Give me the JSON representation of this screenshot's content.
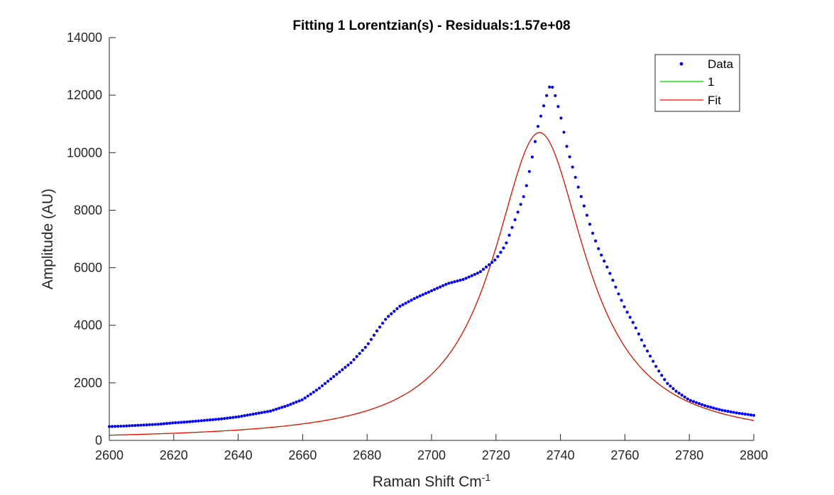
{
  "chart_data": {
    "type": "scatter",
    "title": "Fitting 1 Lorentzian(s) - Residuals:1.57e+08",
    "xlabel": "Raman Shift Cm",
    "xlabel_superscript": "-1",
    "ylabel": "Amplitude (AU)",
    "xlim": [
      2600,
      2800
    ],
    "ylim": [
      0,
      14000
    ],
    "xticks": [
      "2600",
      "2620",
      "2640",
      "2660",
      "2680",
      "2700",
      "2720",
      "2740",
      "2760",
      "2780",
      "2800"
    ],
    "yticks": [
      "0",
      "2000",
      "4000",
      "6000",
      "8000",
      "10000",
      "12000",
      "14000"
    ],
    "grid": false,
    "legend_position": "top-right",
    "legend": [
      "Data",
      "1",
      "Fit"
    ],
    "colors": {
      "data": "#0000ff",
      "component_1": "#00cc00",
      "fit": "#ff0000",
      "axes": "#262626"
    },
    "series": [
      {
        "name": "Data",
        "style": "dots",
        "x": [
          2600,
          2605,
          2610,
          2615,
          2620,
          2625,
          2630,
          2635,
          2640,
          2645,
          2650,
          2655,
          2660,
          2665,
          2670,
          2675,
          2680,
          2683,
          2686,
          2690,
          2695,
          2700,
          2705,
          2710,
          2715,
          2720,
          2723,
          2726,
          2729,
          2731,
          2733,
          2735,
          2736,
          2737,
          2738,
          2740,
          2742,
          2745,
          2748,
          2750,
          2752,
          2755,
          2758,
          2760,
          2763,
          2766,
          2770,
          2773,
          2776,
          2780,
          2785,
          2790,
          2795,
          2800
        ],
        "y": [
          480,
          500,
          530,
          560,
          610,
          650,
          700,
          750,
          820,
          920,
          1020,
          1200,
          1420,
          1800,
          2250,
          2700,
          3300,
          3800,
          4250,
          4650,
          4950,
          5200,
          5450,
          5600,
          5850,
          6300,
          6800,
          7700,
          8600,
          9700,
          10900,
          11700,
          12100,
          12400,
          12150,
          11300,
          10200,
          9000,
          7900,
          7200,
          6600,
          5900,
          5100,
          4600,
          4000,
          3300,
          2500,
          2000,
          1700,
          1400,
          1200,
          1050,
          950,
          870
        ]
      },
      {
        "name": "1",
        "style": "line",
        "peak": {
          "center": 2733.5,
          "amplitude": 10700,
          "hwhm": 17.5,
          "offset": 0
        }
      },
      {
        "name": "Fit",
        "style": "line",
        "peak": {
          "center": 2733.5,
          "amplitude": 10700,
          "hwhm": 17.5,
          "offset": 0
        }
      }
    ]
  }
}
